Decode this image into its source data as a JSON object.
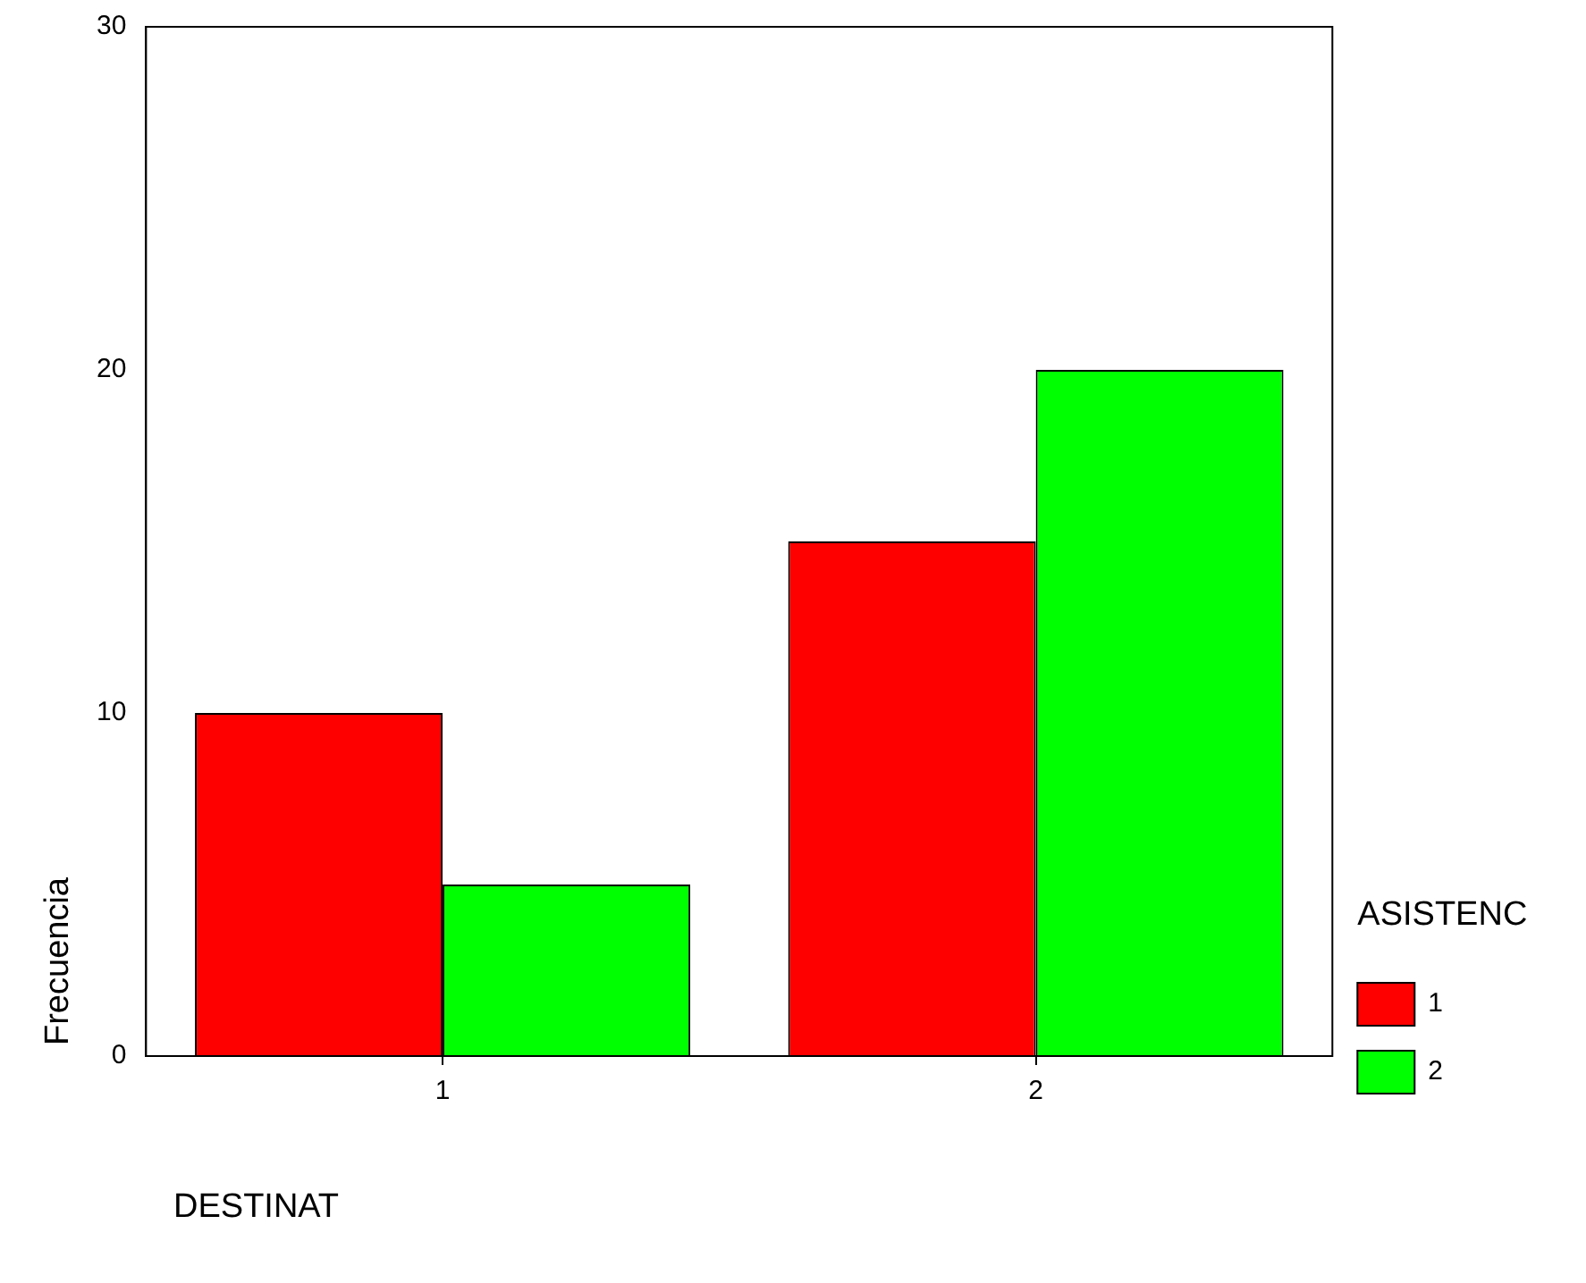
{
  "chart_data": {
    "type": "bar",
    "xlabel": "DESTINAT",
    "ylabel": "Frecuencia",
    "legend_title": "ASISTENC",
    "categories": [
      "1",
      "2"
    ],
    "series": [
      {
        "name": "1",
        "color": "#ff0000",
        "values": [
          10,
          15
        ]
      },
      {
        "name": "2",
        "color": "#00ff00",
        "values": [
          5,
          20
        ]
      }
    ],
    "ylim": [
      0,
      30
    ],
    "yticks": [
      0,
      10,
      20,
      30
    ],
    "grid": false,
    "legend": "right"
  }
}
